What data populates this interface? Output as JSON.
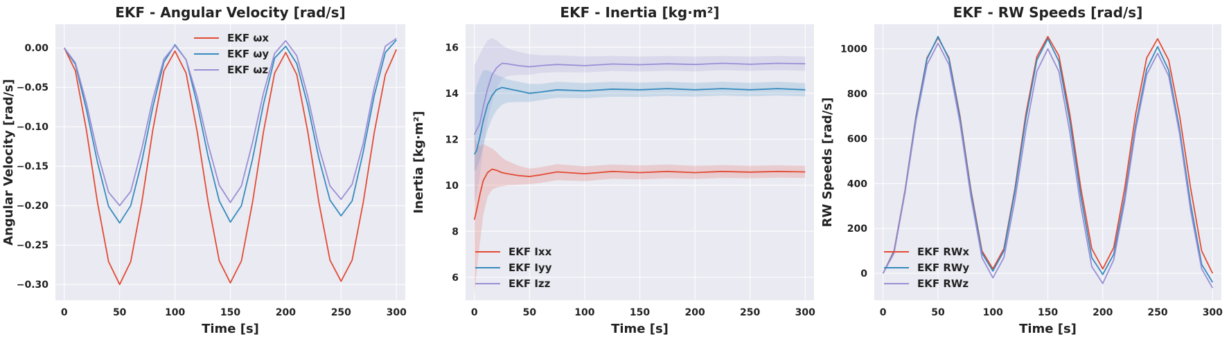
{
  "colors": {
    "bg": "#eaeaf2",
    "grid": "#ffffff",
    "x": "#e24a33",
    "y": "#348abd",
    "z": "#988ed5"
  },
  "chart_data": [
    {
      "type": "line",
      "title": "EKF - Angular Velocity [rad/s]",
      "xlabel": "Time [s]",
      "ylabel": "Angular Velocity [rad/s]",
      "xlim": [
        -8,
        308
      ],
      "ylim": [
        -0.32,
        0.03
      ],
      "xticks": [
        0,
        50,
        100,
        150,
        200,
        250,
        300
      ],
      "xtick_labels": [
        "0",
        "50",
        "100",
        "150",
        "200",
        "250",
        "300"
      ],
      "yticks": [
        0,
        -0.05,
        -0.1,
        -0.15,
        -0.2,
        -0.25,
        -0.3
      ],
      "ytick_labels": [
        "0.00",
        "−0.05",
        "−0.10",
        "−0.15",
        "−0.20",
        "−0.25",
        "−0.30"
      ],
      "legend": "top-center",
      "x": [
        0,
        10,
        20,
        30,
        40,
        50,
        60,
        70,
        80,
        90,
        100,
        110,
        120,
        130,
        140,
        150,
        160,
        170,
        180,
        190,
        200,
        210,
        220,
        230,
        240,
        250,
        260,
        270,
        280,
        290,
        300
      ],
      "series": [
        {
          "name": "EKF ωx",
          "color_key": "x",
          "values": [
            0,
            -0.029,
            -0.104,
            -0.196,
            -0.271,
            -0.3,
            -0.271,
            -0.196,
            -0.104,
            -0.029,
            -0.004,
            -0.032,
            -0.106,
            -0.196,
            -0.27,
            -0.298,
            -0.27,
            -0.196,
            -0.106,
            -0.032,
            -0.006,
            -0.034,
            -0.107,
            -0.196,
            -0.269,
            -0.296,
            -0.269,
            -0.196,
            -0.107,
            -0.034,
            -0.002
          ]
        },
        {
          "name": "EKF ωy",
          "color_key": "y",
          "values": [
            0,
            -0.021,
            -0.078,
            -0.145,
            -0.201,
            -0.222,
            -0.2,
            -0.144,
            -0.075,
            -0.018,
            0.004,
            -0.015,
            -0.071,
            -0.138,
            -0.194,
            -0.221,
            -0.2,
            -0.141,
            -0.071,
            -0.013,
            0.002,
            -0.02,
            -0.073,
            -0.14,
            -0.193,
            -0.213,
            -0.194,
            -0.132,
            -0.06,
            -0.006,
            0.01
          ]
        },
        {
          "name": "EKF ωz",
          "color_key": "z",
          "values": [
            0,
            -0.019,
            -0.07,
            -0.133,
            -0.183,
            -0.2,
            -0.182,
            -0.128,
            -0.065,
            -0.014,
            0.003,
            -0.015,
            -0.062,
            -0.123,
            -0.174,
            -0.196,
            -0.175,
            -0.12,
            -0.057,
            -0.007,
            0.009,
            -0.01,
            -0.062,
            -0.126,
            -0.175,
            -0.192,
            -0.173,
            -0.121,
            -0.05,
            0.002,
            0.012
          ]
        }
      ]
    },
    {
      "type": "line",
      "title": "EKF - Inertia [kg·m²]",
      "xlabel": "Time [s]",
      "ylabel": "Inertia [kg·m²]",
      "xlim": [
        -8,
        308
      ],
      "ylim": [
        5,
        17
      ],
      "xticks": [
        0,
        50,
        100,
        150,
        200,
        250,
        300
      ],
      "xtick_labels": [
        "0",
        "50",
        "100",
        "150",
        "200",
        "250",
        "300"
      ],
      "yticks": [
        6,
        8,
        10,
        12,
        14,
        16
      ],
      "ytick_labels": [
        "6",
        "8",
        "10",
        "12",
        "14",
        "16"
      ],
      "legend": "bottom-left",
      "x": [
        0,
        2,
        5,
        8,
        12,
        16,
        20,
        25,
        30,
        40,
        50,
        60,
        75,
        100,
        125,
        150,
        175,
        200,
        225,
        250,
        275,
        300
      ],
      "series": [
        {
          "name": "EKF Ixx",
          "color_key": "x",
          "values": [
            8.5,
            8.9,
            9.6,
            10.2,
            10.55,
            10.7,
            10.65,
            10.55,
            10.5,
            10.42,
            10.38,
            10.45,
            10.58,
            10.5,
            10.6,
            10.55,
            10.6,
            10.55,
            10.6,
            10.57,
            10.6,
            10.58
          ],
          "lower": [
            5.2,
            6.2,
            7.5,
            8.7,
            9.5,
            9.8,
            9.9,
            9.95,
            10.0,
            10.02,
            10.05,
            10.1,
            10.22,
            10.18,
            10.28,
            10.25,
            10.3,
            10.27,
            10.32,
            10.3,
            10.33,
            10.32
          ],
          "upper": [
            12.2,
            11.8,
            11.7,
            11.8,
            11.7,
            11.6,
            11.45,
            11.2,
            11.05,
            10.85,
            10.72,
            10.78,
            10.92,
            10.82,
            10.9,
            10.86,
            10.9,
            10.84,
            10.88,
            10.84,
            10.87,
            10.84
          ]
        },
        {
          "name": "EKF Iyy",
          "color_key": "y",
          "values": [
            11.35,
            11.5,
            12.1,
            12.8,
            13.5,
            13.9,
            14.15,
            14.25,
            14.2,
            14.1,
            14.0,
            14.05,
            14.15,
            14.1,
            14.18,
            14.15,
            14.2,
            14.15,
            14.2,
            14.15,
            14.2,
            14.15
          ],
          "lower": [
            10.6,
            10.7,
            11.1,
            11.7,
            12.4,
            12.9,
            13.25,
            13.5,
            13.6,
            13.62,
            13.62,
            13.7,
            13.8,
            13.78,
            13.85,
            13.84,
            13.88,
            13.85,
            13.9,
            13.86,
            13.9,
            13.86
          ],
          "upper": [
            13.9,
            14.3,
            14.7,
            15.0,
            15.0,
            14.9,
            14.8,
            14.7,
            14.6,
            14.5,
            14.4,
            14.4,
            14.5,
            14.44,
            14.5,
            14.46,
            14.5,
            14.45,
            14.5,
            14.45,
            14.5,
            14.44
          ]
        },
        {
          "name": "EKF Izz",
          "color_key": "z",
          "values": [
            12.2,
            12.4,
            12.7,
            13.4,
            14.2,
            14.8,
            15.1,
            15.3,
            15.28,
            15.2,
            15.15,
            15.2,
            15.25,
            15.2,
            15.27,
            15.24,
            15.28,
            15.25,
            15.3,
            15.26,
            15.3,
            15.28
          ],
          "lower": [
            9.2,
            9.6,
            10.4,
            11.6,
            12.8,
            13.6,
            14.2,
            14.6,
            14.75,
            14.8,
            14.8,
            14.88,
            14.92,
            14.9,
            14.96,
            14.94,
            14.98,
            14.95,
            15.0,
            14.97,
            15.0,
            14.98
          ],
          "upper": [
            15.2,
            15.4,
            15.7,
            16.0,
            16.3,
            16.4,
            16.3,
            16.1,
            15.95,
            15.8,
            15.7,
            15.65,
            15.65,
            15.6,
            15.62,
            15.6,
            15.62,
            15.6,
            15.62,
            15.6,
            15.62,
            15.6
          ]
        }
      ]
    },
    {
      "type": "line",
      "title": "EKF - RW Speeds [rad/s]",
      "xlabel": "Time [s]",
      "ylabel": "RW Speeds [rad/s]",
      "xlim": [
        -8,
        308
      ],
      "ylim": [
        -120,
        1110
      ],
      "xticks": [
        0,
        50,
        100,
        150,
        200,
        250,
        300
      ],
      "xtick_labels": [
        "0",
        "50",
        "100",
        "150",
        "200",
        "250",
        "300"
      ],
      "yticks": [
        0,
        200,
        400,
        600,
        800,
        1000
      ],
      "ytick_labels": [
        "0",
        "200",
        "400",
        "600",
        "800",
        "1000"
      ],
      "legend": "bottom-left",
      "x": [
        0,
        10,
        20,
        30,
        40,
        50,
        60,
        70,
        80,
        90,
        100,
        110,
        120,
        130,
        140,
        150,
        160,
        170,
        180,
        190,
        200,
        210,
        220,
        230,
        240,
        250,
        260,
        270,
        280,
        290,
        300
      ],
      "series": [
        {
          "name": "EKF RWx",
          "color_key": "x",
          "values": [
            0,
            100,
            370,
            700,
            960,
            1050,
            960,
            700,
            370,
            100,
            20,
            110,
            375,
            710,
            965,
            1055,
            970,
            710,
            380,
            110,
            20,
            115,
            380,
            710,
            960,
            1045,
            950,
            700,
            380,
            100,
            0
          ]
        },
        {
          "name": "EKF RWy",
          "color_key": "y",
          "values": [
            0,
            95,
            365,
            695,
            955,
            1055,
            955,
            690,
            360,
            90,
            10,
            100,
            365,
            690,
            950,
            1045,
            945,
            680,
            345,
            70,
            -5,
            85,
            340,
            660,
            910,
            1010,
            905,
            640,
            310,
            40,
            -40
          ]
        },
        {
          "name": "EKF RWz",
          "color_key": "z",
          "values": [
            0,
            90,
            360,
            680,
            930,
            1025,
            930,
            670,
            340,
            70,
            -20,
            70,
            325,
            640,
            900,
            1000,
            900,
            630,
            300,
            30,
            -45,
            60,
            320,
            640,
            885,
            980,
            880,
            620,
            280,
            20,
            -65
          ]
        }
      ]
    }
  ]
}
